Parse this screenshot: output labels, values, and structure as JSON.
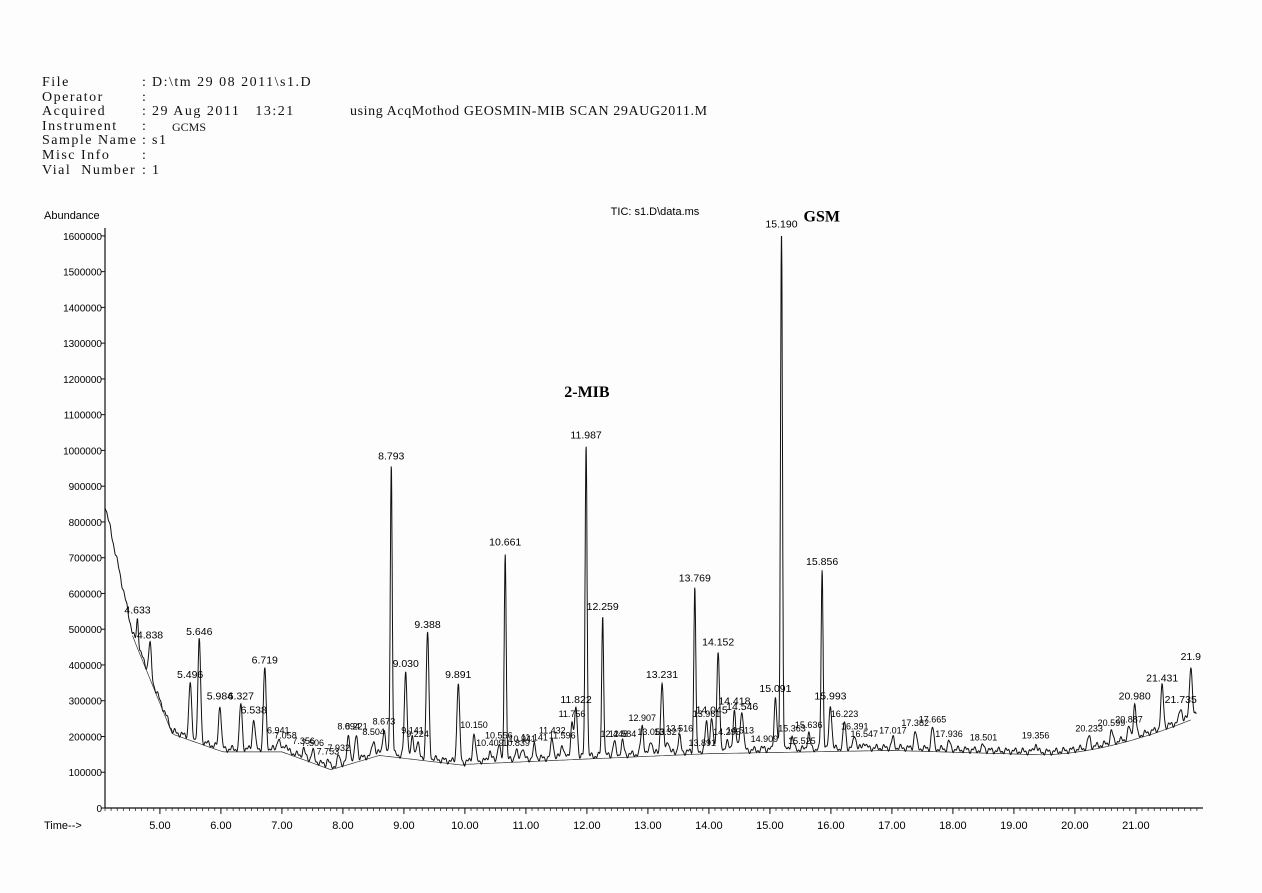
{
  "header": {
    "rows": [
      {
        "label": "File",
        "value": "D:\\tm 29 08 2011\\s1.D"
      },
      {
        "label": "Operator",
        "value": ""
      },
      {
        "label": "Acquired",
        "value": "29 Aug 2011   13:21",
        "method": "using AcqMothod GEOSMIN-MIB SCAN 29AUG2011.M"
      },
      {
        "label": "Instrument",
        "value": "GCMS"
      },
      {
        "label": "Sample Name",
        "value": "s1"
      },
      {
        "label": "Misc Info",
        "value": ""
      },
      {
        "label": "Vial  Number",
        "value": "1"
      }
    ]
  },
  "chart_data": {
    "type": "line",
    "title": "TIC: s1.D\\data.ms",
    "ylabel": "Abundance",
    "xlabel": "Time-->",
    "xlim": [
      4.1,
      22.1
    ],
    "ylim": [
      0,
      1650000
    ],
    "x_ticks": [
      "5.00",
      "6.00",
      "7.00",
      "8.00",
      "9.00",
      "10.00",
      "11.00",
      "12.00",
      "13.00",
      "14.00",
      "15.00",
      "16.00",
      "17.00",
      "18.00",
      "19.00",
      "20.00",
      "21.00"
    ],
    "y_ticks": [
      "0",
      "100000",
      "200000",
      "300000",
      "400000",
      "500000",
      "600000",
      "700000",
      "800000",
      "900000",
      "1000000",
      "1100000",
      "1200000",
      "1300000",
      "1400000",
      "1500000",
      "1600000"
    ],
    "annotations": [
      {
        "text": "2-MIB",
        "x": 12.0,
        "y": 1150000
      },
      {
        "text": "GSM",
        "x": 15.85,
        "y": 1640000
      }
    ],
    "peaks": [
      {
        "rt": 4.633,
        "label": "4.633",
        "height": 530000
      },
      {
        "rt": 4.838,
        "label": "4.838",
        "height": 460000
      },
      {
        "rt": 5.496,
        "label": "5.496",
        "height": 350000
      },
      {
        "rt": 5.646,
        "label": "5.646",
        "height": 470000
      },
      {
        "rt": 5.984,
        "label": "5.984",
        "height": 290000
      },
      {
        "rt": 6.327,
        "label": "6.327",
        "height": 290000
      },
      {
        "rt": 6.538,
        "label": "6.538",
        "height": 250000
      },
      {
        "rt": 6.719,
        "label": "6.719",
        "height": 390000
      },
      {
        "rt": 6.941,
        "label": "6.941",
        "height": 195000
      },
      {
        "rt": 7.058,
        "label": "7.058",
        "height": 180000
      },
      {
        "rt": 7.356,
        "label": "7.356",
        "height": 165000
      },
      {
        "rt": 7.506,
        "label": "7.506",
        "height": 160000
      },
      {
        "rt": 7.753,
        "label": "7.753",
        "height": 135000
      },
      {
        "rt": 7.932,
        "label": "7.932",
        "height": 145000
      },
      {
        "rt": 8.094,
        "label": "8.094",
        "height": 205000
      },
      {
        "rt": 8.221,
        "label": "8.221",
        "height": 205000
      },
      {
        "rt": 8.504,
        "label": "8.504",
        "height": 190000
      },
      {
        "rt": 8.673,
        "label": "8.673",
        "height": 220000
      },
      {
        "rt": 8.793,
        "label": "8.793",
        "height": 960000
      },
      {
        "rt": 9.03,
        "label": "9.030",
        "height": 380000
      },
      {
        "rt": 9.141,
        "label": "9.141",
        "height": 195000
      },
      {
        "rt": 9.224,
        "label": "9.224",
        "height": 185000
      },
      {
        "rt": 9.388,
        "label": "9.388",
        "height": 490000
      },
      {
        "rt": 9.891,
        "label": "9.891",
        "height": 350000
      },
      {
        "rt": 10.15,
        "label": "10.150",
        "height": 210000
      },
      {
        "rt": 10.409,
        "label": "10.409",
        "height": 160000
      },
      {
        "rt": 10.556,
        "label": "10.556",
        "height": 180000
      },
      {
        "rt": 10.661,
        "label": "10.661",
        "height": 720000
      },
      {
        "rt": 10.839,
        "label": "10.839",
        "height": 160000
      },
      {
        "rt": 10.941,
        "label": "10.941",
        "height": 170000
      },
      {
        "rt": 11.141,
        "label": "11.141",
        "height": 175000
      },
      {
        "rt": 11.432,
        "label": "11.432",
        "height": 195000
      },
      {
        "rt": 11.596,
        "label": "11.596",
        "height": 180000
      },
      {
        "rt": 11.756,
        "label": "11.756",
        "height": 240000
      },
      {
        "rt": 11.822,
        "label": "11.822",
        "height": 280000
      },
      {
        "rt": 11.987,
        "label": "11.987",
        "height": 1020000
      },
      {
        "rt": 12.259,
        "label": "12.259",
        "height": 540000
      },
      {
        "rt": 12.448,
        "label": "12.448",
        "height": 185000
      },
      {
        "rt": 12.584,
        "label": "12.584",
        "height": 185000
      },
      {
        "rt": 12.907,
        "label": "12.907",
        "height": 230000
      },
      {
        "rt": 13.053,
        "label": "13.053",
        "height": 190000
      },
      {
        "rt": 13.231,
        "label": "13.231",
        "height": 350000
      },
      {
        "rt": 13.327,
        "label": "13.327",
        "height": 190000
      },
      {
        "rt": 13.516,
        "label": "13.516",
        "height": 200000
      },
      {
        "rt": 13.769,
        "label": "13.769",
        "height": 620000
      },
      {
        "rt": 13.891,
        "label": "13.891",
        "height": 160000
      },
      {
        "rt": 13.961,
        "label": "13.961",
        "height": 240000
      },
      {
        "rt": 14.045,
        "label": "14.045",
        "height": 250000
      },
      {
        "rt": 14.152,
        "label": "14.152",
        "height": 440000
      },
      {
        "rt": 14.295,
        "label": "14.295",
        "height": 190000
      },
      {
        "rt": 14.418,
        "label": "14.418",
        "height": 275000
      },
      {
        "rt": 14.513,
        "label": "14.513",
        "height": 195000
      },
      {
        "rt": 14.546,
        "label": "14.546",
        "height": 260000
      },
      {
        "rt": 14.909,
        "label": "14.909",
        "height": 170000
      },
      {
        "rt": 15.091,
        "label": "15.091",
        "height": 310000
      },
      {
        "rt": 15.19,
        "label": "15.190",
        "height": 1610000
      },
      {
        "rt": 15.363,
        "label": "15.363",
        "height": 200000
      },
      {
        "rt": 15.525,
        "label": "15.525",
        "height": 165000
      },
      {
        "rt": 15.636,
        "label": "15.636",
        "height": 210000
      },
      {
        "rt": 15.856,
        "label": "15.856",
        "height": 665000
      },
      {
        "rt": 15.993,
        "label": "15.993",
        "height": 290000
      },
      {
        "rt": 16.223,
        "label": "16.223",
        "height": 240000
      },
      {
        "rt": 16.391,
        "label": "16.391",
        "height": 205000
      },
      {
        "rt": 16.547,
        "label": "16.547",
        "height": 185000
      },
      {
        "rt": 17.017,
        "label": "17.017",
        "height": 195000
      },
      {
        "rt": 17.382,
        "label": "17.382",
        "height": 215000
      },
      {
        "rt": 17.665,
        "label": "17.665",
        "height": 225000
      },
      {
        "rt": 17.936,
        "label": "17.936",
        "height": 185000
      },
      {
        "rt": 18.501,
        "label": "18.501",
        "height": 175000
      },
      {
        "rt": 19.356,
        "label": "19.356",
        "height": 180000
      },
      {
        "rt": 20.233,
        "label": "20.233",
        "height": 200000
      },
      {
        "rt": 20.599,
        "label": "20.599",
        "height": 215000
      },
      {
        "rt": 20.887,
        "label": "20.887",
        "height": 225000
      },
      {
        "rt": 20.98,
        "label": "20.980",
        "height": 290000
      },
      {
        "rt": 21.431,
        "label": "21.431",
        "height": 340000
      },
      {
        "rt": 21.735,
        "label": "21.735",
        "height": 280000
      },
      {
        "rt": 21.9,
        "label": "21.9",
        "height": 400000
      }
    ]
  }
}
